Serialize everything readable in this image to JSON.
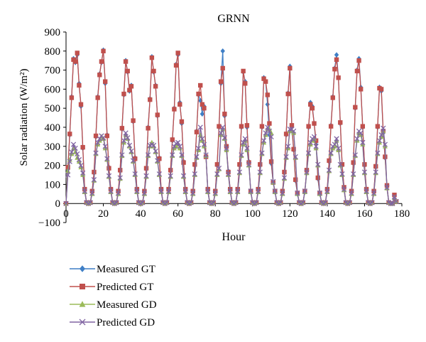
{
  "chart_data": {
    "type": "line",
    "title": "GRNN",
    "xlabel": "Hour",
    "ylabel": "Solar radiation (W/m²)",
    "xlim": [
      0,
      180
    ],
    "ylim": [
      -100,
      900
    ],
    "x_ticks": [
      0,
      20,
      40,
      60,
      80,
      100,
      120,
      140,
      160,
      180
    ],
    "y_ticks": [
      -100,
      0,
      100,
      200,
      300,
      400,
      500,
      600,
      700,
      800,
      900
    ],
    "grid": false,
    "legend_position": "bottom-left",
    "colors": {
      "measured_gt": "#3f7fc6",
      "predicted_gt": "#c0504d",
      "measured_gd": "#9bbb59",
      "predicted_gd": "#8064a2"
    },
    "x": [
      0,
      1,
      2,
      3,
      4,
      5,
      6,
      7,
      8,
      9,
      10,
      11,
      12,
      13,
      14,
      15,
      16,
      17,
      18,
      19,
      20,
      21,
      22,
      23,
      24,
      25,
      26,
      27,
      28,
      29,
      30,
      31,
      32,
      33,
      34,
      35,
      36,
      37,
      38,
      39,
      40,
      41,
      42,
      43,
      44,
      45,
      46,
      47,
      48,
      49,
      50,
      51,
      52,
      53,
      54,
      55,
      56,
      57,
      58,
      59,
      60,
      61,
      62,
      63,
      64,
      65,
      66,
      67,
      68,
      69,
      70,
      71,
      72,
      73,
      74,
      75,
      76,
      77,
      78,
      79,
      80,
      81,
      82,
      83,
      84,
      85,
      86,
      87,
      88,
      89,
      90,
      91,
      92,
      93,
      94,
      95,
      96,
      97,
      98,
      99,
      100,
      101,
      102,
      103,
      104,
      105,
      106,
      107,
      108,
      109,
      110,
      111,
      112,
      113,
      114,
      115,
      116,
      117,
      118,
      119,
      120,
      121,
      122,
      123,
      124,
      125,
      126,
      127,
      128,
      129,
      130,
      131,
      132,
      133,
      134,
      135,
      136,
      137,
      138,
      139,
      140,
      141,
      142,
      143,
      144,
      145,
      146,
      147,
      148,
      149,
      150,
      151,
      152,
      153,
      154,
      155,
      156,
      157,
      158,
      159,
      160,
      161,
      162,
      163,
      164,
      165,
      166,
      167,
      168,
      169,
      170,
      171,
      172,
      173,
      174,
      175,
      176,
      177
    ],
    "series": [
      {
        "name": "Measured GT",
        "values": [
          0,
          180,
          360,
          560,
          760,
          740,
          780,
          630,
          510,
          290,
          70,
          5,
          0,
          5,
          60,
          160,
          350,
          560,
          680,
          740,
          805,
          630,
          360,
          190,
          70,
          5,
          0,
          5,
          60,
          170,
          390,
          570,
          750,
          690,
          590,
          620,
          430,
          240,
          70,
          5,
          0,
          5,
          60,
          180,
          400,
          550,
          770,
          690,
          620,
          460,
          240,
          70,
          5,
          0,
          5,
          70,
          170,
          330,
          500,
          730,
          780,
          530,
          420,
          220,
          70,
          5,
          0,
          5,
          60,
          200,
          380,
          570,
          540,
          470,
          510,
          250,
          70,
          5,
          0,
          5,
          60,
          200,
          400,
          630,
          800,
          460,
          280,
          170,
          70,
          5,
          0,
          5,
          70,
          200,
          400,
          690,
          640,
          400,
          220,
          60,
          5,
          0,
          5,
          70,
          200,
          400,
          660,
          640,
          520,
          360,
          210,
          110,
          60,
          5,
          0,
          5,
          60,
          160,
          360,
          580,
          720,
          400,
          280,
          120,
          50,
          5,
          0,
          5,
          60,
          170,
          400,
          530,
          510,
          420,
          310,
          130,
          50,
          5,
          0,
          5,
          70,
          220,
          410,
          560,
          710,
          780,
          660,
          420,
          200,
          80,
          5,
          0,
          5,
          60,
          210,
          500,
          700,
          760,
          610,
          400,
          200,
          70,
          5,
          0,
          5,
          60,
          190,
          400,
          610,
          590,
          370,
          240,
          90,
          5,
          0,
          0,
          40,
          10
        ]
      },
      {
        "name": "Predicted GT",
        "values": [
          0,
          190,
          365,
          555,
          755,
          745,
          790,
          620,
          520,
          295,
          75,
          5,
          0,
          5,
          65,
          165,
          355,
          555,
          675,
          745,
          800,
          640,
          355,
          185,
          75,
          5,
          0,
          5,
          65,
          175,
          395,
          575,
          745,
          695,
          595,
          615,
          435,
          235,
          75,
          5,
          0,
          5,
          65,
          185,
          395,
          545,
          765,
          695,
          615,
          465,
          235,
          75,
          5,
          0,
          5,
          75,
          175,
          335,
          495,
          725,
          790,
          520,
          430,
          215,
          75,
          5,
          0,
          5,
          65,
          205,
          375,
          575,
          620,
          520,
          500,
          245,
          75,
          5,
          0,
          5,
          65,
          205,
          405,
          640,
          710,
          470,
          300,
          165,
          75,
          5,
          0,
          5,
          75,
          205,
          405,
          695,
          630,
          410,
          215,
          65,
          5,
          0,
          5,
          75,
          205,
          405,
          655,
          640,
          570,
          420,
          220,
          110,
          65,
          5,
          0,
          5,
          65,
          165,
          365,
          575,
          710,
          410,
          285,
          125,
          55,
          5,
          0,
          5,
          65,
          175,
          405,
          520,
          500,
          420,
          330,
          135,
          55,
          5,
          0,
          5,
          75,
          225,
          405,
          555,
          705,
          755,
          660,
          425,
          205,
          85,
          5,
          0,
          5,
          65,
          215,
          505,
          695,
          750,
          600,
          405,
          205,
          75,
          5,
          0,
          5,
          65,
          195,
          405,
          605,
          600,
          380,
          245,
          95,
          5,
          0,
          0,
          45,
          10
        ]
      },
      {
        "name": "Measured GD",
        "values": [
          0,
          170,
          230,
          260,
          290,
          270,
          240,
          220,
          190,
          150,
          60,
          5,
          0,
          5,
          50,
          120,
          260,
          310,
          330,
          350,
          340,
          290,
          230,
          140,
          60,
          5,
          0,
          5,
          50,
          130,
          250,
          320,
          360,
          340,
          300,
          270,
          220,
          150,
          60,
          5,
          0,
          5,
          50,
          140,
          250,
          300,
          320,
          300,
          270,
          220,
          150,
          60,
          5,
          0,
          5,
          60,
          140,
          250,
          290,
          300,
          310,
          290,
          250,
          140,
          60,
          5,
          0,
          5,
          50,
          150,
          240,
          280,
          360,
          330,
          300,
          250,
          60,
          5,
          0,
          5,
          50,
          150,
          180,
          360,
          390,
          340,
          280,
          150,
          60,
          5,
          0,
          5,
          60,
          160,
          250,
          310,
          330,
          280,
          200,
          60,
          5,
          0,
          5,
          60,
          160,
          260,
          320,
          360,
          390,
          390,
          370,
          110,
          60,
          5,
          0,
          5,
          50,
          130,
          240,
          290,
          380,
          380,
          370,
          240,
          50,
          5,
          0,
          5,
          60,
          160,
          260,
          310,
          330,
          340,
          290,
          200,
          50,
          5,
          0,
          5,
          60,
          170,
          260,
          290,
          300,
          330,
          280,
          200,
          150,
          70,
          5,
          0,
          5,
          50,
          150,
          250,
          330,
          370,
          360,
          310,
          160,
          60,
          5,
          0,
          5,
          50,
          160,
          260,
          320,
          350,
          380,
          300,
          80,
          5,
          0,
          0,
          30,
          10
        ]
      },
      {
        "name": "Predicted GD",
        "values": [
          0,
          150,
          220,
          270,
          310,
          290,
          260,
          230,
          200,
          160,
          65,
          5,
          0,
          5,
          55,
          125,
          265,
          320,
          340,
          355,
          345,
          300,
          235,
          145,
          65,
          5,
          0,
          5,
          55,
          135,
          255,
          330,
          370,
          345,
          305,
          275,
          225,
          155,
          65,
          5,
          0,
          5,
          55,
          145,
          255,
          305,
          310,
          305,
          275,
          225,
          155,
          65,
          5,
          0,
          5,
          65,
          145,
          255,
          300,
          315,
          320,
          300,
          255,
          145,
          65,
          5,
          0,
          5,
          55,
          155,
          245,
          290,
          400,
          340,
          310,
          255,
          65,
          5,
          0,
          5,
          55,
          155,
          185,
          370,
          400,
          345,
          290,
          155,
          65,
          5,
          0,
          5,
          65,
          165,
          255,
          320,
          340,
          290,
          205,
          65,
          5,
          0,
          5,
          65,
          165,
          265,
          330,
          370,
          400,
          380,
          350,
          115,
          65,
          5,
          0,
          5,
          55,
          135,
          245,
          300,
          390,
          390,
          380,
          245,
          55,
          5,
          0,
          5,
          65,
          165,
          265,
          320,
          340,
          350,
          300,
          205,
          55,
          5,
          0,
          5,
          65,
          175,
          265,
          300,
          310,
          340,
          290,
          205,
          155,
          75,
          5,
          0,
          5,
          55,
          155,
          255,
          340,
          380,
          370,
          320,
          165,
          65,
          5,
          0,
          5,
          55,
          165,
          265,
          330,
          360,
          395,
          310,
          85,
          5,
          0,
          0,
          35,
          10
        ]
      }
    ]
  }
}
